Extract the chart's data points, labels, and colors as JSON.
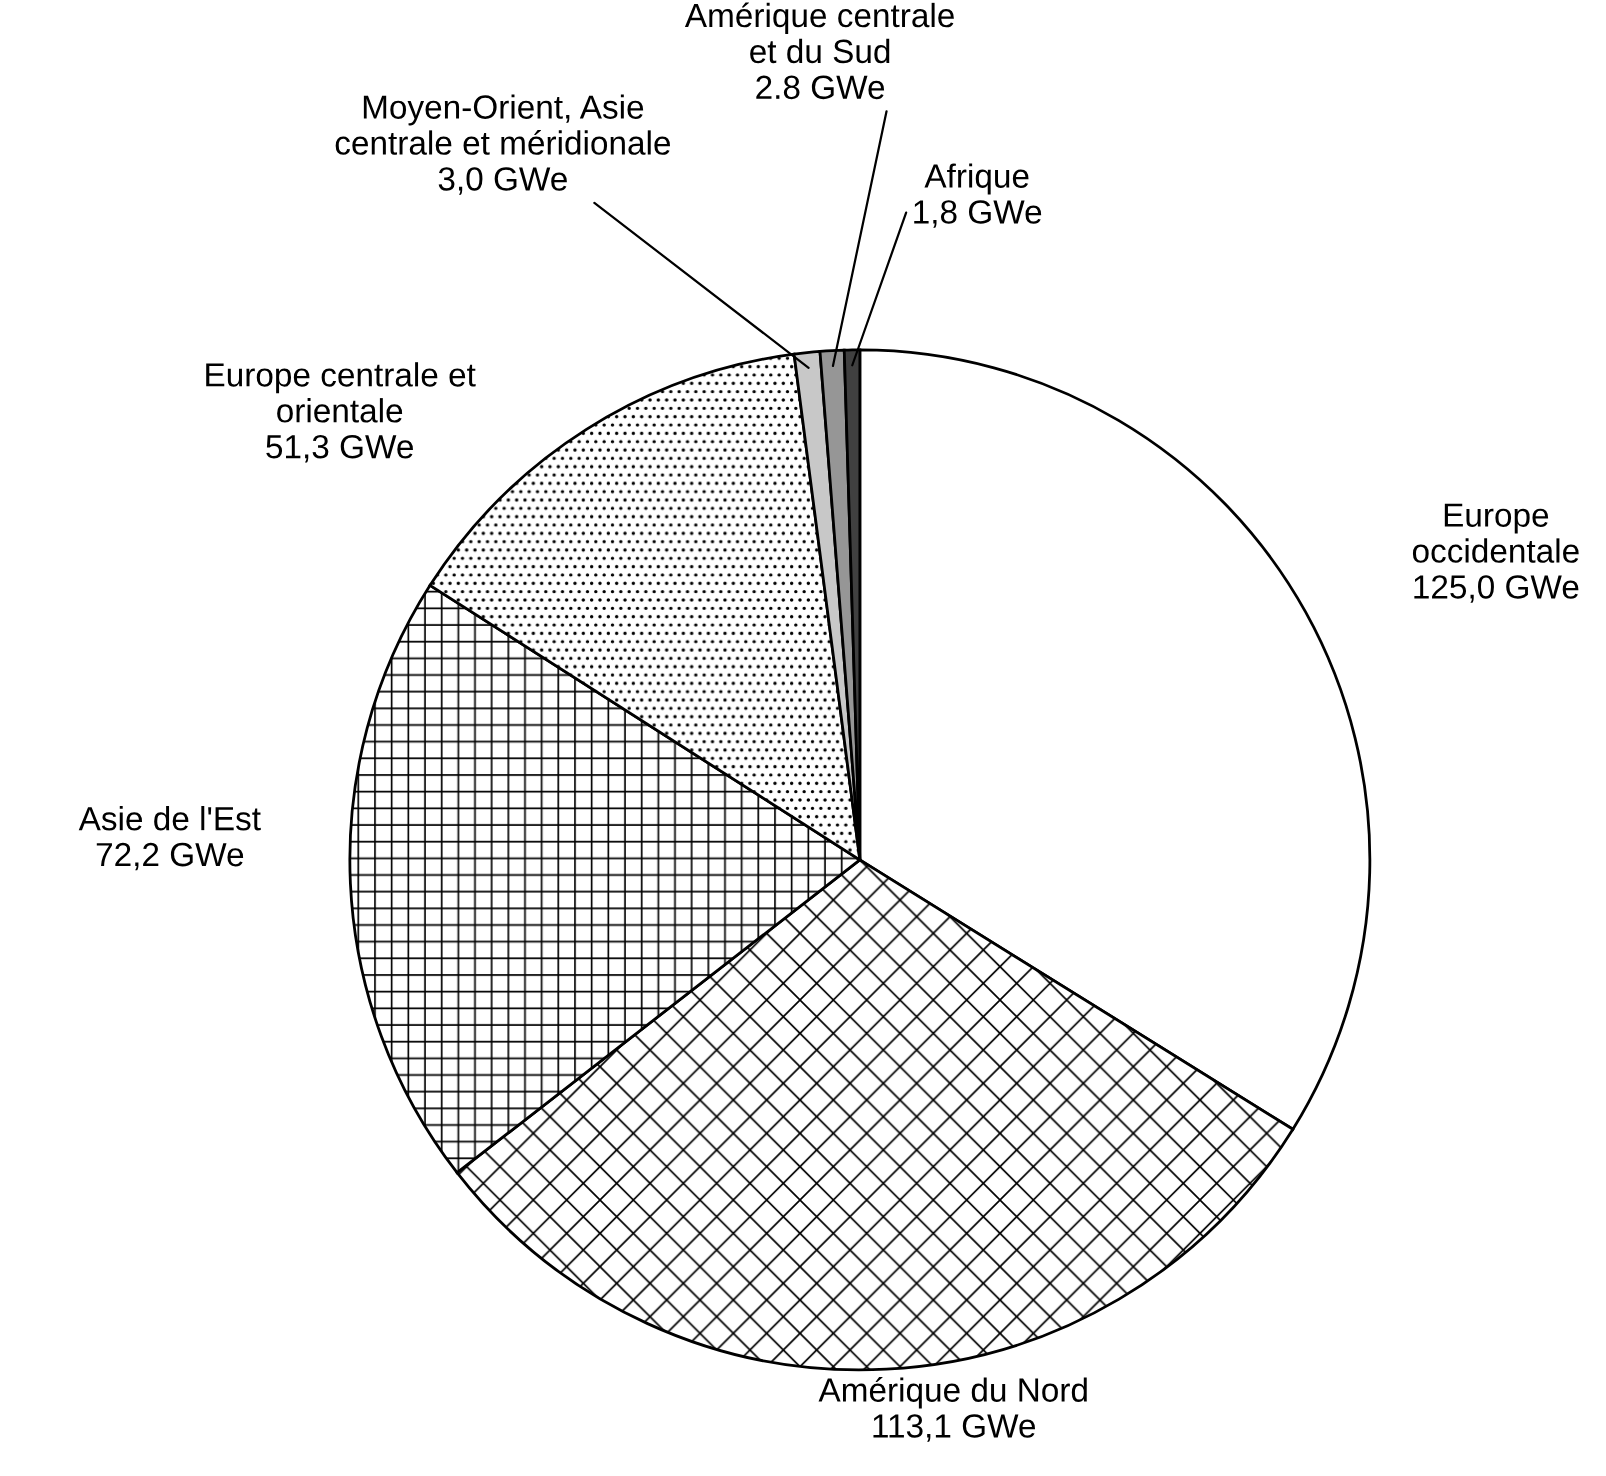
{
  "chart_data": {
    "type": "pie",
    "categories": [
      "Europe\noccidentale",
      "Amérique du Nord",
      "Asie de l'Est",
      "Europe centrale et\norientale",
      "Moyen-Orient, Asie\ncentrale et méridionale",
      "Amérique centrale\net du Sud",
      "Afrique"
    ],
    "values": [
      125.0,
      113.1,
      72.2,
      51.3,
      3.0,
      2.8,
      1.8
    ],
    "value_labels": [
      "125,0 GWe",
      "113,1 GWe",
      "72,2 GWe",
      "51,3 GWe",
      "3,0 GWe",
      "2.8 GWe",
      "1,8 GWe"
    ],
    "colors": [
      "#ffffff",
      "#ffffff",
      "#ffffff",
      "#ffffff",
      "#c8c8c8",
      "#969696",
      "#404040"
    ]
  }
}
